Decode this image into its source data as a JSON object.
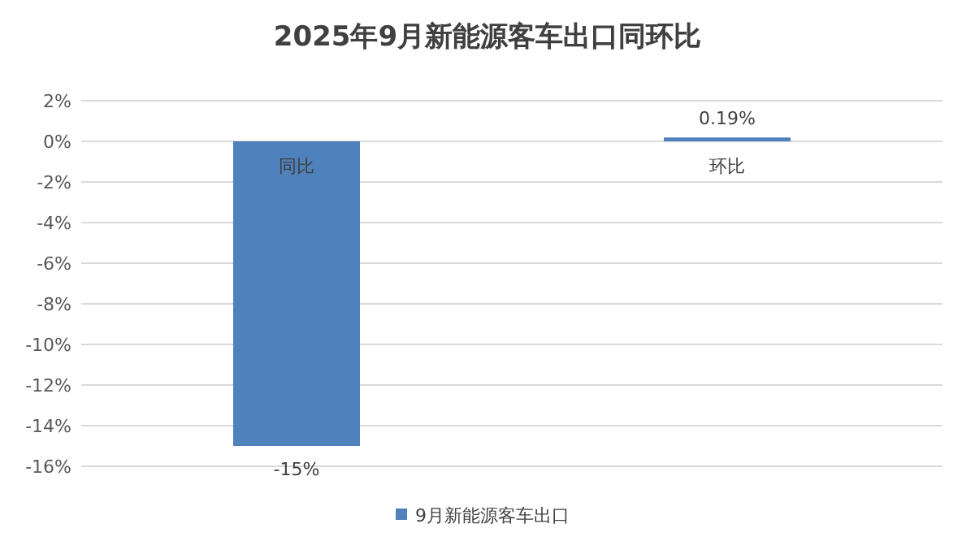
{
  "chart_data": {
    "type": "bar",
    "title": "2025年9月新能源客车出口同环比",
    "categories": [
      "同比",
      "环比"
    ],
    "series": [
      {
        "name": "9月新能源客车出口",
        "color": "#4f81bd",
        "values": [
          -15,
          0.19
        ],
        "value_labels": [
          "-15%",
          "0.19%"
        ]
      }
    ],
    "ylim": [
      -16,
      2
    ],
    "yticks": [
      {
        "value": 2,
        "label": "2%"
      },
      {
        "value": 0,
        "label": "0%"
      },
      {
        "value": -2,
        "label": "-2%"
      },
      {
        "value": -4,
        "label": "-4%"
      },
      {
        "value": -6,
        "label": "-6%"
      },
      {
        "value": -8,
        "label": "-8%"
      },
      {
        "value": -10,
        "label": "-10%"
      },
      {
        "value": -12,
        "label": "-12%"
      },
      {
        "value": -14,
        "label": "-14%"
      },
      {
        "value": -16,
        "label": "-16%"
      }
    ],
    "grid": "y",
    "legend": "bottom"
  }
}
